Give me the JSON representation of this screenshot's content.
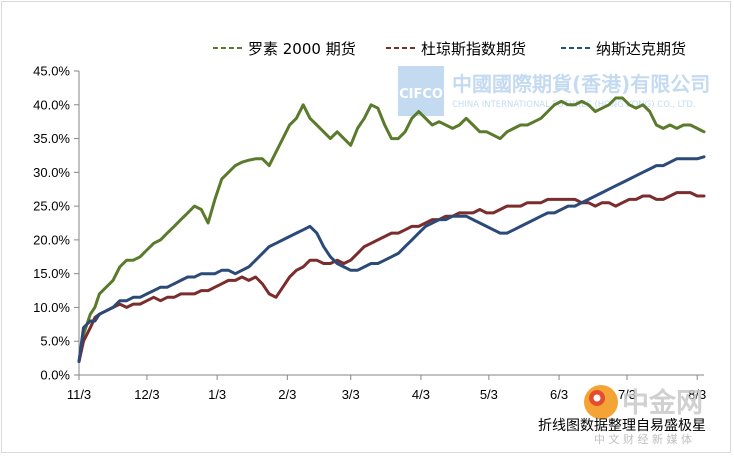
{
  "chart_data": {
    "type": "line",
    "xlabel": "",
    "ylabel": "",
    "x_tick_labels": [
      "11/3",
      "12/3",
      "1/3",
      "2/3",
      "3/3",
      "4/3",
      "5/3",
      "6/3",
      "7/3",
      "8/3"
    ],
    "x_range": [
      "11/3",
      "8/6"
    ],
    "ylim": [
      0,
      45
    ],
    "y_ticks": [
      "0.0%",
      "5.0%",
      "10.0%",
      "15.0%",
      "20.0%",
      "25.0%",
      "30.0%",
      "35.0%",
      "40.0%",
      "45.0%"
    ],
    "grid": false,
    "legend_position": "top-right",
    "series": [
      {
        "name": "罗素 2000 期货",
        "color": "#5a7a2c",
        "legend_style": "dashed",
        "values": [
          [
            "11/3",
            2
          ],
          [
            "11/5",
            6
          ],
          [
            "11/8",
            9
          ],
          [
            "11/10",
            10
          ],
          [
            "11/12",
            12
          ],
          [
            "11/15",
            13
          ],
          [
            "11/18",
            14
          ],
          [
            "11/21",
            16
          ],
          [
            "11/24",
            17
          ],
          [
            "11/27",
            17
          ],
          [
            "11/30",
            17.5
          ],
          [
            "12/3",
            18.5
          ],
          [
            "12/6",
            19.5
          ],
          [
            "12/9",
            20
          ],
          [
            "12/12",
            21
          ],
          [
            "12/15",
            22
          ],
          [
            "12/18",
            23
          ],
          [
            "12/21",
            24
          ],
          [
            "12/24",
            25
          ],
          [
            "12/27",
            24.5
          ],
          [
            "12/30",
            22.5
          ],
          [
            "1/2",
            26
          ],
          [
            "1/5",
            29
          ],
          [
            "1/8",
            30
          ],
          [
            "1/11",
            31
          ],
          [
            "1/14",
            31.5
          ],
          [
            "1/17",
            31.8
          ],
          [
            "1/20",
            32
          ],
          [
            "1/23",
            32
          ],
          [
            "1/26",
            31
          ],
          [
            "1/29",
            33
          ],
          [
            "2/1",
            35
          ],
          [
            "2/4",
            37
          ],
          [
            "2/7",
            38
          ],
          [
            "2/10",
            40
          ],
          [
            "2/13",
            38
          ],
          [
            "2/16",
            37
          ],
          [
            "2/19",
            36
          ],
          [
            "2/22",
            35
          ],
          [
            "2/25",
            36
          ],
          [
            "2/28",
            35
          ],
          [
            "3/3",
            34
          ],
          [
            "3/6",
            36.5
          ],
          [
            "3/9",
            38
          ],
          [
            "3/12",
            40
          ],
          [
            "3/15",
            39.5
          ],
          [
            "3/18",
            37
          ],
          [
            "3/21",
            35
          ],
          [
            "3/24",
            35
          ],
          [
            "3/27",
            36
          ],
          [
            "3/30",
            38
          ],
          [
            "4/2",
            39
          ],
          [
            "4/5",
            38
          ],
          [
            "4/8",
            37
          ],
          [
            "4/11",
            37.5
          ],
          [
            "4/14",
            37
          ],
          [
            "4/17",
            36.5
          ],
          [
            "4/20",
            37
          ],
          [
            "4/23",
            38
          ],
          [
            "4/26",
            37
          ],
          [
            "4/29",
            36
          ],
          [
            "5/2",
            36
          ],
          [
            "5/5",
            35.5
          ],
          [
            "5/8",
            35
          ],
          [
            "5/11",
            36
          ],
          [
            "5/14",
            36.5
          ],
          [
            "5/17",
            37
          ],
          [
            "5/20",
            37
          ],
          [
            "5/23",
            37.5
          ],
          [
            "5/26",
            38
          ],
          [
            "5/29",
            39
          ],
          [
            "6/1",
            40
          ],
          [
            "6/4",
            40.5
          ],
          [
            "6/7",
            40
          ],
          [
            "6/10",
            40
          ],
          [
            "6/13",
            40.5
          ],
          [
            "6/16",
            40
          ],
          [
            "6/19",
            39
          ],
          [
            "6/22",
            39.5
          ],
          [
            "6/25",
            40
          ],
          [
            "6/28",
            41
          ],
          [
            "7/1",
            41
          ],
          [
            "7/4",
            40
          ],
          [
            "7/7",
            39.5
          ],
          [
            "7/10",
            40
          ],
          [
            "7/13",
            39
          ],
          [
            "7/16",
            37
          ],
          [
            "7/19",
            36.5
          ],
          [
            "7/22",
            37
          ],
          [
            "7/25",
            36.5
          ],
          [
            "7/28",
            37
          ],
          [
            "7/31",
            37
          ],
          [
            "8/3",
            36.5
          ],
          [
            "8/6",
            36
          ]
        ]
      },
      {
        "name": "杜琼斯指数期货",
        "color": "#7b2c2c",
        "legend_style": "dashed",
        "values": [
          [
            "11/3",
            2
          ],
          [
            "11/5",
            5
          ],
          [
            "11/8",
            7
          ],
          [
            "11/10",
            8.5
          ],
          [
            "11/12",
            9
          ],
          [
            "11/15",
            9.5
          ],
          [
            "11/18",
            10
          ],
          [
            "11/21",
            10.5
          ],
          [
            "11/24",
            10
          ],
          [
            "11/27",
            10.5
          ],
          [
            "11/30",
            10.5
          ],
          [
            "12/3",
            11
          ],
          [
            "12/6",
            11.5
          ],
          [
            "12/9",
            11
          ],
          [
            "12/12",
            11.5
          ],
          [
            "12/15",
            11.5
          ],
          [
            "12/18",
            12
          ],
          [
            "12/21",
            12
          ],
          [
            "12/24",
            12
          ],
          [
            "12/27",
            12.5
          ],
          [
            "12/30",
            12.5
          ],
          [
            "1/2",
            13
          ],
          [
            "1/5",
            13.5
          ],
          [
            "1/8",
            14
          ],
          [
            "1/11",
            14
          ],
          [
            "1/14",
            14.5
          ],
          [
            "1/17",
            14
          ],
          [
            "1/20",
            14.5
          ],
          [
            "1/23",
            13.5
          ],
          [
            "1/26",
            12
          ],
          [
            "1/29",
            11.5
          ],
          [
            "2/1",
            13
          ],
          [
            "2/4",
            14.5
          ],
          [
            "2/7",
            15.5
          ],
          [
            "2/10",
            16
          ],
          [
            "2/13",
            17
          ],
          [
            "2/16",
            17
          ],
          [
            "2/19",
            16.5
          ],
          [
            "2/22",
            16.5
          ],
          [
            "2/25",
            17
          ],
          [
            "2/28",
            16.5
          ],
          [
            "3/3",
            17
          ],
          [
            "3/6",
            18
          ],
          [
            "3/9",
            19
          ],
          [
            "3/12",
            19.5
          ],
          [
            "3/15",
            20
          ],
          [
            "3/18",
            20.5
          ],
          [
            "3/21",
            21
          ],
          [
            "3/24",
            21
          ],
          [
            "3/27",
            21.5
          ],
          [
            "3/30",
            22
          ],
          [
            "4/2",
            22
          ],
          [
            "4/5",
            22.5
          ],
          [
            "4/8",
            23
          ],
          [
            "4/11",
            23
          ],
          [
            "4/14",
            23.5
          ],
          [
            "4/17",
            23.5
          ],
          [
            "4/20",
            24
          ],
          [
            "4/23",
            24
          ],
          [
            "4/26",
            24
          ],
          [
            "4/29",
            24.5
          ],
          [
            "5/2",
            24
          ],
          [
            "5/5",
            24
          ],
          [
            "5/8",
            24.5
          ],
          [
            "5/11",
            25
          ],
          [
            "5/14",
            25
          ],
          [
            "5/17",
            25
          ],
          [
            "5/20",
            25.5
          ],
          [
            "5/23",
            25.5
          ],
          [
            "5/26",
            25.5
          ],
          [
            "5/29",
            26
          ],
          [
            "6/1",
            26
          ],
          [
            "6/4",
            26
          ],
          [
            "6/7",
            26
          ],
          [
            "6/10",
            26
          ],
          [
            "6/13",
            25.5
          ],
          [
            "6/16",
            25.5
          ],
          [
            "6/19",
            25
          ],
          [
            "6/22",
            25.5
          ],
          [
            "6/25",
            25.5
          ],
          [
            "6/28",
            25
          ],
          [
            "7/1",
            25.5
          ],
          [
            "7/4",
            26
          ],
          [
            "7/7",
            26
          ],
          [
            "7/10",
            26.5
          ],
          [
            "7/13",
            26.5
          ],
          [
            "7/16",
            26
          ],
          [
            "7/19",
            26
          ],
          [
            "7/22",
            26.5
          ],
          [
            "7/25",
            27
          ],
          [
            "7/28",
            27
          ],
          [
            "7/31",
            27
          ],
          [
            "8/3",
            26.5
          ],
          [
            "8/6",
            26.5
          ]
        ]
      },
      {
        "name": "纳斯达克期货",
        "color": "#2b4a78",
        "legend_style": "dashed",
        "values": [
          [
            "11/3",
            2
          ],
          [
            "11/5",
            7
          ],
          [
            "11/8",
            8
          ],
          [
            "11/10",
            8
          ],
          [
            "11/12",
            9
          ],
          [
            "11/15",
            9.5
          ],
          [
            "11/18",
            10
          ],
          [
            "11/21",
            11
          ],
          [
            "11/24",
            11
          ],
          [
            "11/27",
            11.5
          ],
          [
            "11/30",
            11.5
          ],
          [
            "12/3",
            12
          ],
          [
            "12/6",
            12.5
          ],
          [
            "12/9",
            13
          ],
          [
            "12/12",
            13
          ],
          [
            "12/15",
            13.5
          ],
          [
            "12/18",
            14
          ],
          [
            "12/21",
            14.5
          ],
          [
            "12/24",
            14.5
          ],
          [
            "12/27",
            15
          ],
          [
            "12/30",
            15
          ],
          [
            "1/2",
            15
          ],
          [
            "1/5",
            15.5
          ],
          [
            "1/8",
            15.5
          ],
          [
            "1/11",
            15
          ],
          [
            "1/14",
            15.5
          ],
          [
            "1/17",
            16
          ],
          [
            "1/20",
            17
          ],
          [
            "1/23",
            18
          ],
          [
            "1/26",
            19
          ],
          [
            "1/29",
            19.5
          ],
          [
            "2/1",
            20
          ],
          [
            "2/4",
            20.5
          ],
          [
            "2/7",
            21
          ],
          [
            "2/10",
            21.5
          ],
          [
            "2/13",
            22
          ],
          [
            "2/16",
            21
          ],
          [
            "2/19",
            19
          ],
          [
            "2/22",
            17.5
          ],
          [
            "2/25",
            16.5
          ],
          [
            "2/28",
            16
          ],
          [
            "3/3",
            15.5
          ],
          [
            "3/6",
            15.5
          ],
          [
            "3/9",
            16
          ],
          [
            "3/12",
            16.5
          ],
          [
            "3/15",
            16.5
          ],
          [
            "3/18",
            17
          ],
          [
            "3/21",
            17.5
          ],
          [
            "3/24",
            18
          ],
          [
            "3/27",
            19
          ],
          [
            "3/30",
            20
          ],
          [
            "4/2",
            21
          ],
          [
            "4/5",
            22
          ],
          [
            "4/8",
            22.5
          ],
          [
            "4/11",
            23
          ],
          [
            "4/14",
            23
          ],
          [
            "4/17",
            23.5
          ],
          [
            "4/20",
            23.5
          ],
          [
            "4/23",
            23.5
          ],
          [
            "4/26",
            23
          ],
          [
            "4/29",
            22.5
          ],
          [
            "5/2",
            22
          ],
          [
            "5/5",
            21.5
          ],
          [
            "5/8",
            21
          ],
          [
            "5/11",
            21
          ],
          [
            "5/14",
            21.5
          ],
          [
            "5/17",
            22
          ],
          [
            "5/20",
            22.5
          ],
          [
            "5/23",
            23
          ],
          [
            "5/26",
            23.5
          ],
          [
            "5/29",
            24
          ],
          [
            "6/1",
            24
          ],
          [
            "6/4",
            24.5
          ],
          [
            "6/7",
            25
          ],
          [
            "6/10",
            25
          ],
          [
            "6/13",
            25.5
          ],
          [
            "6/16",
            26
          ],
          [
            "6/19",
            26.5
          ],
          [
            "6/22",
            27
          ],
          [
            "6/25",
            27.5
          ],
          [
            "6/28",
            28
          ],
          [
            "7/1",
            28.5
          ],
          [
            "7/4",
            29
          ],
          [
            "7/7",
            29.5
          ],
          [
            "7/10",
            30
          ],
          [
            "7/13",
            30.5
          ],
          [
            "7/16",
            31
          ],
          [
            "7/19",
            31
          ],
          [
            "7/22",
            31.5
          ],
          [
            "7/25",
            32
          ],
          [
            "7/28",
            32
          ],
          [
            "7/31",
            32
          ],
          [
            "8/3",
            32
          ],
          [
            "8/6",
            32.3
          ]
        ]
      }
    ]
  },
  "watermarks": {
    "cifco_badge": "CIFCO",
    "cifco_name_cn": "中國國際期貨(香港)有限公司",
    "cifco_name_en": "CHINA INTERNATIONAL FUTURES (HONG KONG) CO., LTD.",
    "cnfol_brand": "中金网",
    "cnfol_slogan": "中 文 财 经 新 媒 体",
    "caption": "折线图数据整理自易盛极星"
  },
  "colors": {
    "axis": "#868686",
    "watermark_cifco": "#4a8fd6",
    "cnfol_orange": "#f39a1e",
    "cnfol_red": "#e2432f",
    "cnfol_grey": "#c8c8c8"
  }
}
